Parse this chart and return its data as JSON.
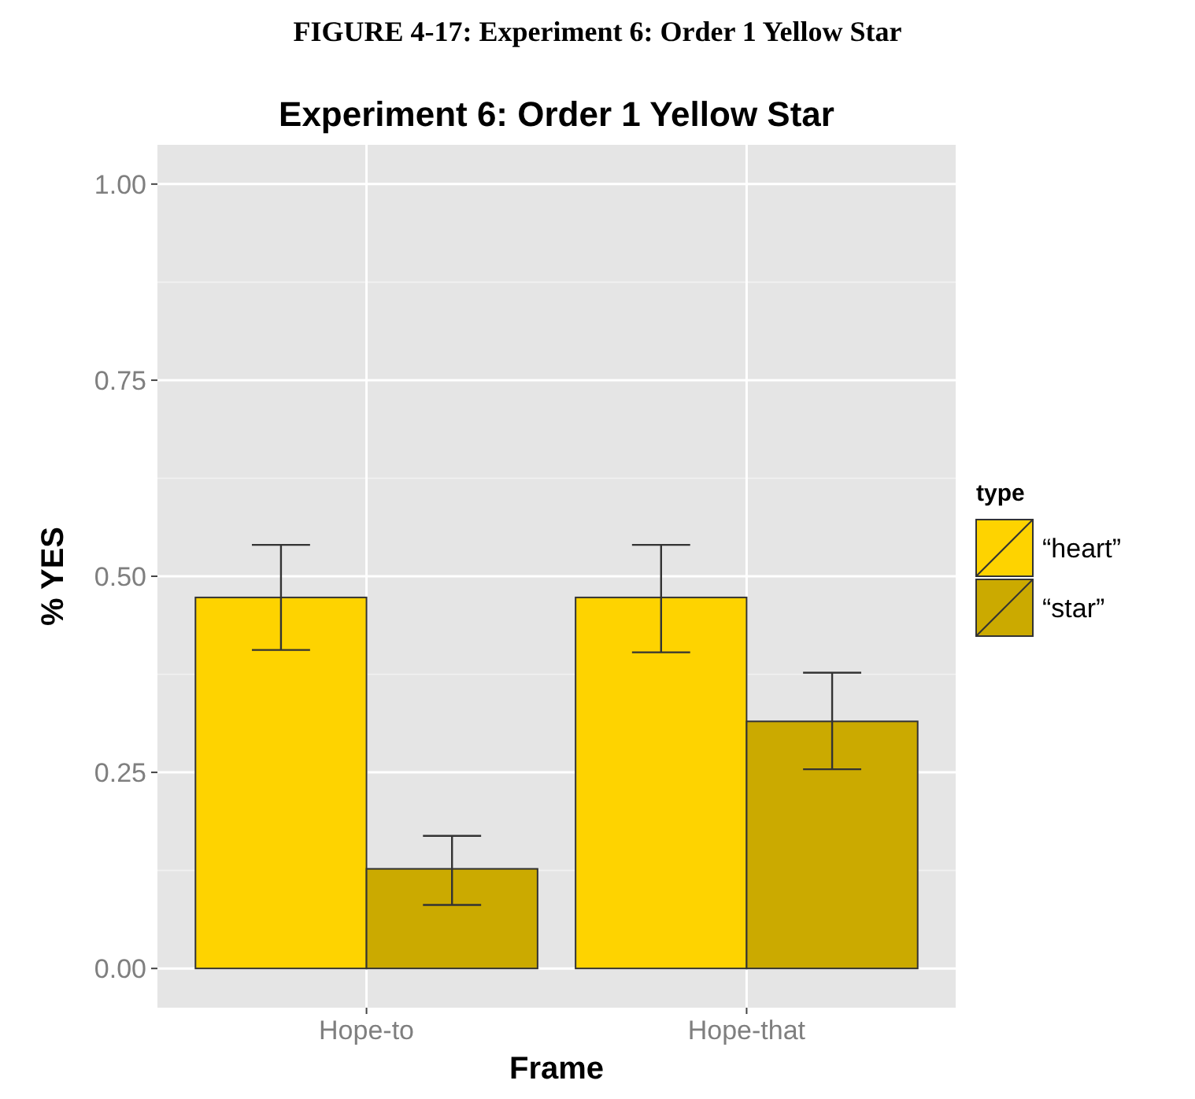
{
  "chart_data": {
    "type": "bar",
    "title": "Experiment 6: Order 1 Yellow Star",
    "xlabel": "Frame",
    "ylabel": "% YES",
    "legend_title": "type",
    "annotations": [
      "FIGURE 4-17: Experiment 6: Order 1 Yellow Star"
    ],
    "categories": [
      "Hope-to",
      "Hope-that"
    ],
    "series": [
      {
        "name": "“heart”",
        "color": "#fed300",
        "values": [
          0.473,
          0.473
        ],
        "errors": [
          [
            0.406,
            0.54
          ],
          [
            0.403,
            0.54
          ]
        ]
      },
      {
        "name": "“star”",
        "color": "#cbaa00",
        "values": [
          0.127,
          0.315
        ],
        "errors": [
          [
            0.081,
            0.169
          ],
          [
            0.254,
            0.377
          ]
        ]
      }
    ],
    "ylim": [
      -0.05,
      1.05
    ],
    "yticks": [
      {
        "value": 0,
        "label": "0.00"
      },
      {
        "value": 0.25,
        "label": "0.25"
      },
      {
        "value": 0.5,
        "label": "0.50"
      },
      {
        "value": 0.75,
        "label": "0.75"
      },
      {
        "value": 1,
        "label": "1.00"
      }
    ],
    "grid": true,
    "legend": "right"
  }
}
